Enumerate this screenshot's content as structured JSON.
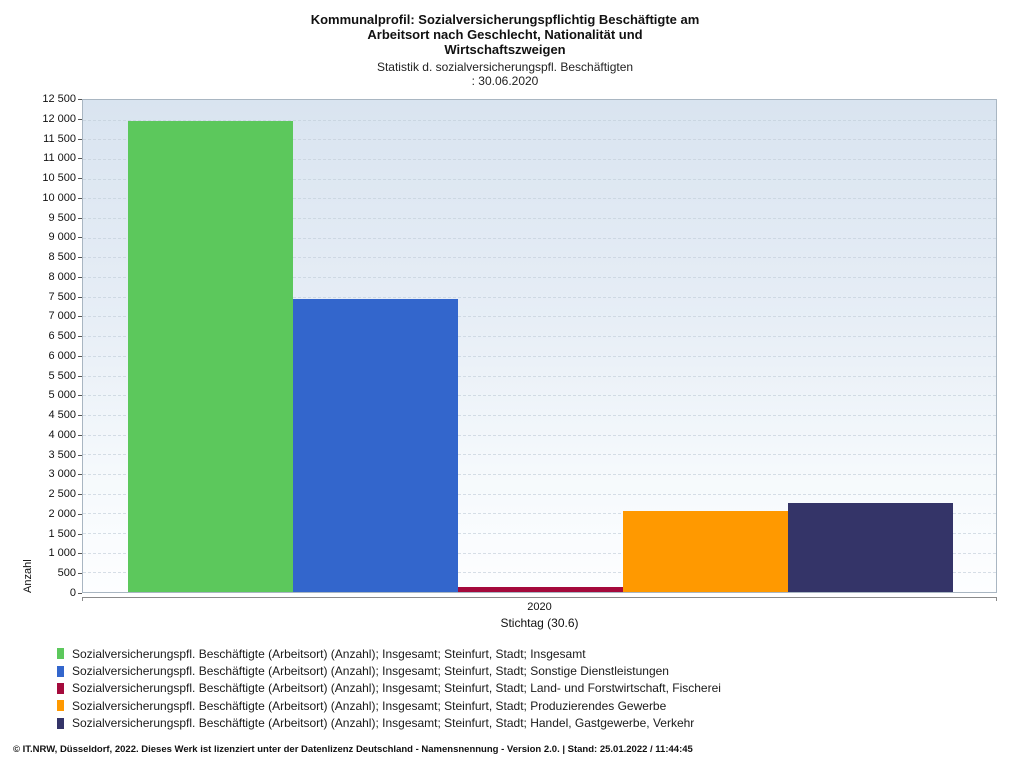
{
  "title": {
    "lines": [
      "Kommunalprofil: Sozialversicherungspflichtig Beschäftigte am",
      "Arbeitsort nach Geschlecht, Nationalität und",
      "Wirtschaftszweigen"
    ]
  },
  "subtitle": {
    "lines": [
      "Statistik d. sozialversicherungspfl. Beschäftigten",
      ": 30.06.2020"
    ]
  },
  "axes": {
    "y_axis_label": "Anzahl",
    "x_axis_label": "Stichtag (30.6)",
    "x_tick_label": "2020"
  },
  "chart_data": {
    "type": "bar",
    "title": "Kommunalprofil: Sozialversicherungspflichtig Beschäftigte am Arbeitsort nach Geschlecht, Nationalität und Wirtschaftszweigen",
    "subtitle": "Statistik d. sozialversicherungspfl. Beschäftigten : 30.06.2020",
    "xlabel": "Stichtag (30.6)",
    "ylabel": "Anzahl",
    "categories": [
      "2020"
    ],
    "ylim": [
      0,
      12500
    ],
    "ytick_step": 500,
    "grid": "horizontal-dashed",
    "legend_position": "bottom-left",
    "series": [
      {
        "key": "insgesamt",
        "name": "Sozialversicherungspfl. Beschäftigte (Arbeitsort) (Anzahl); Insgesamt; Steinfurt, Stadt; Insgesamt",
        "color": "#5cc85c",
        "values": [
          11960
        ]
      },
      {
        "key": "sonstige-dienstleistungen",
        "name": "Sozialversicherungspfl. Beschäftigte (Arbeitsort) (Anzahl); Insgesamt; Steinfurt, Stadt; Sonstige Dienstleistungen",
        "color": "#3366cc",
        "values": [
          7455
        ]
      },
      {
        "key": "land-und-forstwirtschaft-fischerei",
        "name": "Sozialversicherungspfl. Beschäftigte (Arbeitsort) (Anzahl); Insgesamt; Steinfurt, Stadt; Land- und Forstwirtschaft, Fischerei",
        "color": "#a40a3c",
        "values": [
          125
        ]
      },
      {
        "key": "produzierendes-gewerbe",
        "name": "Sozialversicherungspfl. Beschäftigte (Arbeitsort) (Anzahl); Insgesamt; Steinfurt, Stadt; Produzierendes Gewerbe",
        "color": "#ff9900",
        "values": [
          2060
        ]
      },
      {
        "key": "handel-gastgewerbe-verkehr",
        "name": "Sozialversicherungspfl. Beschäftigte (Arbeitsort) (Anzahl); Insgesamt; Steinfurt, Stadt; Handel, Gastgewerbe, Verkehr",
        "color": "#343468",
        "values": [
          2270
        ]
      }
    ]
  },
  "footer": {
    "text": "© IT.NRW, Düsseldorf, 2022. Dieses Werk ist lizenziert unter der Datenlizenz Deutschland - Namensnennung - Version 2.0. | Stand: 25.01.2022 / 11:44:45"
  }
}
